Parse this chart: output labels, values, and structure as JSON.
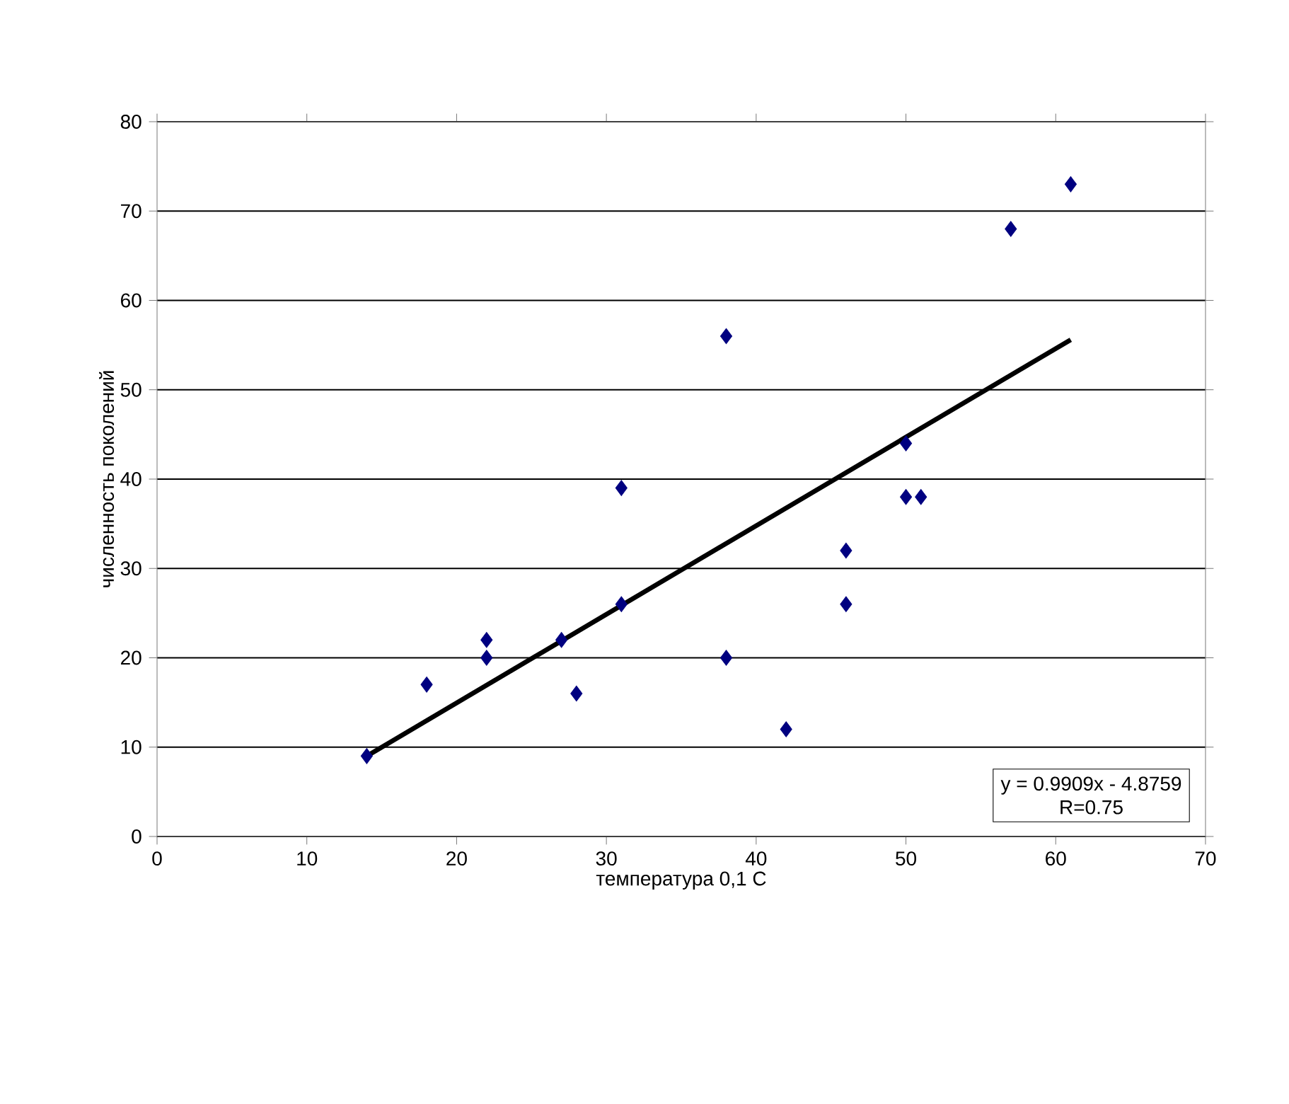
{
  "chart_data": {
    "type": "scatter",
    "xlabel": "температура 0,1 С",
    "ylabel": "численность поколений",
    "xlim": [
      0,
      70
    ],
    "ylim": [
      0,
      80
    ],
    "xticks": [
      0,
      10,
      20,
      30,
      40,
      50,
      60,
      70
    ],
    "yticks": [
      0,
      10,
      20,
      30,
      40,
      50,
      60,
      70,
      80
    ],
    "grid": "y",
    "marker": "diamond",
    "series": [
      {
        "color": "#000080",
        "x": [
          14,
          18,
          22,
          22,
          27,
          28,
          31,
          31,
          38,
          38,
          42,
          46,
          46,
          50,
          50,
          51,
          57,
          61
        ],
        "values": [
          9,
          17,
          22,
          20,
          22,
          16,
          39,
          26,
          56,
          20,
          12,
          32,
          26,
          44,
          38,
          38,
          68,
          73
        ]
      },
      {
        "type": "line",
        "color": "#000000",
        "line_style": "solid",
        "marker": "none",
        "x": [
          14,
          61
        ],
        "values": [
          9.0,
          55.6
        ]
      }
    ],
    "annotations": [
      "y = 0.9909x - 4.8759",
      "R=0.75"
    ]
  }
}
